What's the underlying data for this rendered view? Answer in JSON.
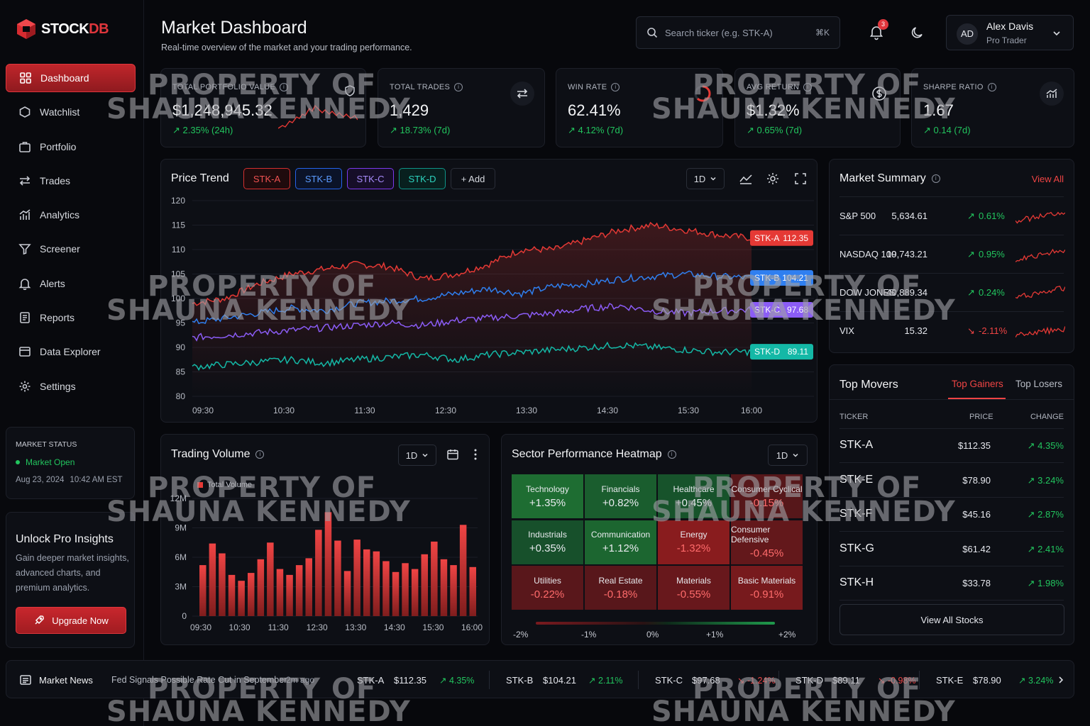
{
  "brand": {
    "name_a": "STOCK",
    "name_b": "DB",
    "accent": "#e0363c"
  },
  "sidebar": {
    "items": [
      {
        "label": "Dashboard",
        "icon": "grid-icon",
        "active": true
      },
      {
        "label": "Watchlist",
        "icon": "watchlist-icon"
      },
      {
        "label": "Portfolio",
        "icon": "briefcase-icon"
      },
      {
        "label": "Trades",
        "icon": "swap-icon"
      },
      {
        "label": "Analytics",
        "icon": "analytics-icon"
      },
      {
        "label": "Screener",
        "icon": "filter-icon"
      },
      {
        "label": "Alerts",
        "icon": "bell-icon"
      },
      {
        "label": "Reports",
        "icon": "report-icon"
      },
      {
        "label": "Data Explorer",
        "icon": "folder-icon"
      },
      {
        "label": "Settings",
        "icon": "gear-icon"
      }
    ],
    "market_status": {
      "title": "MARKET STATUS",
      "status": "Market Open",
      "date": "Aug 23, 2024",
      "time": "10:42 AM EST"
    },
    "promo": {
      "title": "Unlock Pro Insights",
      "body": "Gain deeper market insights, advanced charts, and premium analytics.",
      "button": "Upgrade Now"
    }
  },
  "header": {
    "title": "Market Dashboard",
    "subtitle": "Real-time overview of the market and your trading performance.",
    "search_placeholder": "Search ticker (e.g. STK-A)",
    "shortcut": "⌘K",
    "notifications": "3",
    "user": {
      "initials": "AD",
      "name": "Alex Davis",
      "role": "Pro Trader"
    }
  },
  "kpis": [
    {
      "label": "TOTAL PORTFOLIO VALUE",
      "value": "$1,248,945.32",
      "change": "2.35% (24h)",
      "icon": "shield-icon"
    },
    {
      "label": "TOTAL TRADES",
      "value": "1,429",
      "change": "18.73% (7d)",
      "icon": "swap-icon"
    },
    {
      "label": "WIN RATE",
      "value": "62.41%",
      "change": "4.12% (7d)",
      "icon": "progress-ring-icon",
      "progress": 0.62
    },
    {
      "label": "AVG RETURN",
      "value": "$1.32%",
      "change": "0.65% (7d)",
      "icon": "dollar-icon"
    },
    {
      "label": "SHARPE RATIO",
      "value": "1.67",
      "change": "0.14 (7d)",
      "icon": "chart-icon"
    }
  ],
  "price_trend": {
    "title": "Price Trend",
    "add_label": "+ Add",
    "timeframe": "1D",
    "chips": [
      "STK-A",
      "STK-B",
      "STK-C",
      "STK-D"
    ],
    "chart_data": {
      "type": "line",
      "x": [
        "09:30",
        "10:30",
        "11:30",
        "12:30",
        "13:30",
        "14:30",
        "15:30",
        "16:00"
      ],
      "yticks": [
        120,
        115,
        110,
        105,
        100,
        95,
        90,
        85,
        80
      ],
      "ylim": [
        80,
        120
      ],
      "series": [
        {
          "name": "STK-A",
          "color": "#e53935",
          "last": "112.35",
          "points": [
            99,
            100,
            103,
            105,
            106,
            107,
            106.5,
            104,
            105,
            107,
            110,
            110,
            112,
            114,
            115,
            114,
            113,
            112.35
          ]
        },
        {
          "name": "STK-B",
          "color": "#2f7ff0",
          "last": "104.21",
          "points": [
            95,
            96,
            97,
            98,
            97.5,
            99,
            99.5,
            100,
            101,
            102,
            101,
            102.5,
            103,
            104,
            104.5,
            105,
            104.5,
            104.21
          ]
        },
        {
          "name": "STK-C",
          "color": "#8b5cf6",
          "last": "97.68",
          "points": [
            92,
            92.5,
            93,
            93.5,
            94,
            94.5,
            95,
            94.5,
            95.5,
            96,
            96.5,
            97,
            98,
            98.5,
            97.5,
            97,
            97.5,
            97.68
          ]
        },
        {
          "name": "STK-D",
          "color": "#14b8a6",
          "last": "89.11",
          "points": [
            86,
            86.5,
            87,
            87.5,
            86.8,
            87.5,
            88,
            88.5,
            87.5,
            88.5,
            89,
            89.5,
            90,
            90.5,
            90,
            89.5,
            89,
            89.11
          ]
        }
      ]
    }
  },
  "market_summary": {
    "title": "Market Summary",
    "view_all": "View All",
    "rows": [
      {
        "name": "S&P 500",
        "value": "5,634.61",
        "change": "0.61%",
        "dir": "up"
      },
      {
        "name": "NASDAQ 100",
        "value": "19,743.21",
        "change": "0.95%",
        "dir": "up"
      },
      {
        "name": "DOW JONES",
        "value": "40,889.34",
        "change": "0.24%",
        "dir": "up"
      },
      {
        "name": "VIX",
        "value": "15.32",
        "change": "-2.11%",
        "dir": "down"
      }
    ]
  },
  "volume": {
    "title": "Trading Volume",
    "timeframe": "1D",
    "legend": "Total Volume",
    "chart_data": {
      "type": "bar",
      "yticks": [
        "12M",
        "9M",
        "6M",
        "3M",
        "0"
      ],
      "ylim": [
        0,
        12
      ],
      "xticks": [
        "09:30",
        "10:30",
        "11:30",
        "12:30",
        "13:30",
        "14:30",
        "15:30",
        "16:00"
      ],
      "values": [
        5.2,
        7.4,
        6.4,
        4.2,
        3.6,
        4.4,
        5.8,
        7.5,
        4.8,
        4.2,
        5.2,
        5.9,
        8.8,
        10.6,
        7.7,
        4.6,
        7.8,
        6.8,
        6.6,
        5.6,
        4.5,
        5.4,
        4.8,
        6.3,
        7.6,
        5.8,
        5.2,
        9.3,
        5.0
      ]
    }
  },
  "heatmap": {
    "title": "Sector Performance Heatmap",
    "timeframe": "1D",
    "cells": [
      {
        "name": "Technology",
        "value": "+1.35%"
      },
      {
        "name": "Financials",
        "value": "+0.82%"
      },
      {
        "name": "Healthcare",
        "value": "+0.45%"
      },
      {
        "name": "Consumer Cyclical",
        "value": "-0.15%"
      },
      {
        "name": "Industrials",
        "value": "+0.35%"
      },
      {
        "name": "Communication",
        "value": "+1.12%"
      },
      {
        "name": "Energy",
        "value": "-1.32%"
      },
      {
        "name": "Consumer Defensive",
        "value": "-0.45%"
      },
      {
        "name": "Utilities",
        "value": "-0.22%"
      },
      {
        "name": "Real Estate",
        "value": "-0.18%"
      },
      {
        "name": "Materials",
        "value": "-0.55%"
      },
      {
        "name": "Basic Materials",
        "value": "-0.91%"
      }
    ],
    "scale": [
      "-2%",
      "-1%",
      "0%",
      "+1%",
      "+2%"
    ]
  },
  "top_movers": {
    "title": "Top Movers",
    "tab_gainers": "Top Gainers",
    "tab_losers": "Top Losers",
    "col_ticker": "TICKER",
    "col_price": "PRICE",
    "col_change": "CHANGE",
    "rows": [
      {
        "ticker": "STK-A",
        "price": "$112.35",
        "change": "4.35%"
      },
      {
        "ticker": "STK-E",
        "price": "$78.90",
        "change": "3.24%"
      },
      {
        "ticker": "STK-F",
        "price": "$45.16",
        "change": "2.87%"
      },
      {
        "ticker": "STK-G",
        "price": "$61.42",
        "change": "2.41%"
      },
      {
        "ticker": "STK-H",
        "price": "$33.78",
        "change": "1.98%"
      }
    ],
    "view_all": "View All Stocks"
  },
  "news": {
    "label": "Market News",
    "headline": "Fed Signals Possible Rate Cut in September",
    "age": "2m ago",
    "tickers": [
      {
        "sym": "STK-A",
        "price": "$112.35",
        "change": "4.35%",
        "dir": "up"
      },
      {
        "sym": "STK-B",
        "price": "$104.21",
        "change": "2.11%",
        "dir": "up"
      },
      {
        "sym": "STK-C",
        "price": "$97.68",
        "change": "-1.24%",
        "dir": "down"
      },
      {
        "sym": "STK-D",
        "price": "$89.11",
        "change": "-0.98%",
        "dir": "down"
      },
      {
        "sym": "STK-E",
        "price": "$78.90",
        "change": "3.24%",
        "dir": "up"
      }
    ]
  },
  "watermark": {
    "line1": "PROPERTY OF",
    "line2": "SHAUNA KENNEDY"
  }
}
